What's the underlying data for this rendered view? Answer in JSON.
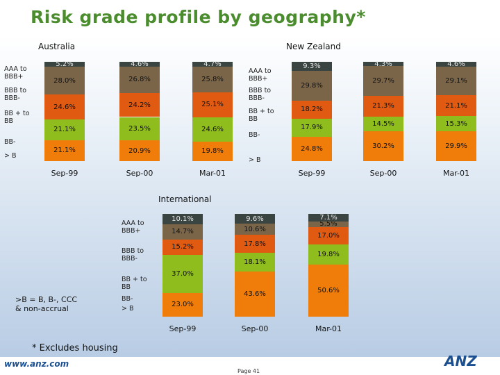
{
  "title": "Risk grade profile by geography*",
  "footnote_left": ">B = B, B-, CCC\n& non-accrual",
  "footnote": "* Excludes housing",
  "website": "www.anz.com",
  "page": "Page 41",
  "logo_text": "ANZ",
  "colors": {
    "AAA to BBB+": "#f07d0a",
    "BBB to BBB-": "#8fbd1e",
    "BB + to BB": "#e05a12",
    "BB-": "#7a6549",
    ">B": "#3a4440"
  },
  "chart_data": [
    {
      "type": "bar",
      "stacked": true,
      "title": "Australia",
      "categories": [
        "Sep-99",
        "Sep-00",
        "Mar-01"
      ],
      "series": [
        {
          "name": "AAA to BBB+",
          "values": [
            21.1,
            20.9,
            19.8
          ],
          "labels": [
            "21.1%",
            "20.9%",
            "19.8%"
          ]
        },
        {
          "name": "BBB to BBB-",
          "values": [
            21.1,
            23.5,
            24.6
          ],
          "labels": [
            "21.1%",
            "23.5%",
            "24.6%"
          ]
        },
        {
          "name": "BB + to BB",
          "values": [
            24.6,
            24.2,
            25.1
          ],
          "labels": [
            "24.6%",
            "24.2%",
            "25.1%"
          ]
        },
        {
          "name": "BB-",
          "values": [
            28.0,
            26.8,
            25.8
          ],
          "labels": [
            "28.0%",
            "26.8%",
            "25.8%"
          ]
        },
        {
          "name": ">B",
          "values": [
            5.2,
            4.6,
            4.7
          ],
          "labels": [
            "5.2%",
            "4.6%",
            "4.7%"
          ]
        }
      ],
      "legend": [
        "AAA to BBB+",
        "BBB to BBB-",
        "BB + to BB",
        "BB-",
        "> B"
      ]
    },
    {
      "type": "bar",
      "stacked": true,
      "title": "New Zealand",
      "categories": [
        "Sep-99",
        "Sep-00",
        "Mar-01"
      ],
      "series": [
        {
          "name": "AAA to BBB+",
          "values": [
            24.8,
            30.2,
            29.9
          ],
          "labels": [
            "24.8%",
            "30.2%",
            "29.9%"
          ]
        },
        {
          "name": "BBB to BBB-",
          "values": [
            17.9,
            14.5,
            15.3
          ],
          "labels": [
            "17.9%",
            "14.5%",
            "15.3%"
          ]
        },
        {
          "name": "BB + to BB",
          "values": [
            18.2,
            21.3,
            21.1
          ],
          "labels": [
            "18.2%",
            "21.3%",
            "21.1%"
          ]
        },
        {
          "name": "BB-",
          "values": [
            29.8,
            29.7,
            29.1
          ],
          "labels": [
            "29.8%",
            "29.7%",
            "29.1%"
          ]
        },
        {
          "name": ">B",
          "values": [
            9.3,
            4.3,
            4.6
          ],
          "labels": [
            "9.3%",
            "4.3%",
            "4.6%"
          ]
        }
      ],
      "legend": [
        "AAA to BBB+",
        "BBB to BBB-",
        "BB + to BB",
        "BB-",
        "> B"
      ]
    },
    {
      "type": "bar",
      "stacked": true,
      "title": "International",
      "categories": [
        "Sep-99",
        "Sep-00",
        "Mar-01"
      ],
      "series": [
        {
          "name": "AAA to BBB+",
          "values": [
            23.0,
            43.6,
            50.6
          ],
          "labels": [
            "23.0%",
            "43.6%",
            "50.6%"
          ]
        },
        {
          "name": "BBB to BBB-",
          "values": [
            37.0,
            18.1,
            19.8
          ],
          "labels": [
            "37.0%",
            "18.1%",
            "19.8%"
          ]
        },
        {
          "name": "BB + to BB",
          "values": [
            15.2,
            17.8,
            17.0
          ],
          "labels": [
            "15.2%",
            "17.8%",
            "17.0%"
          ]
        },
        {
          "name": "BB-",
          "values": [
            14.7,
            10.6,
            5.5
          ],
          "labels": [
            "14.7%",
            "10.6%",
            "5.5%"
          ]
        },
        {
          "name": ">B",
          "values": [
            10.1,
            9.6,
            7.1
          ],
          "labels": [
            "10.1%",
            "9.6%",
            "7.1%"
          ]
        }
      ],
      "legend": [
        "AAA to BBB+",
        "BBB to BBB-",
        "BB + to BB",
        "BB-",
        "> B"
      ]
    }
  ]
}
